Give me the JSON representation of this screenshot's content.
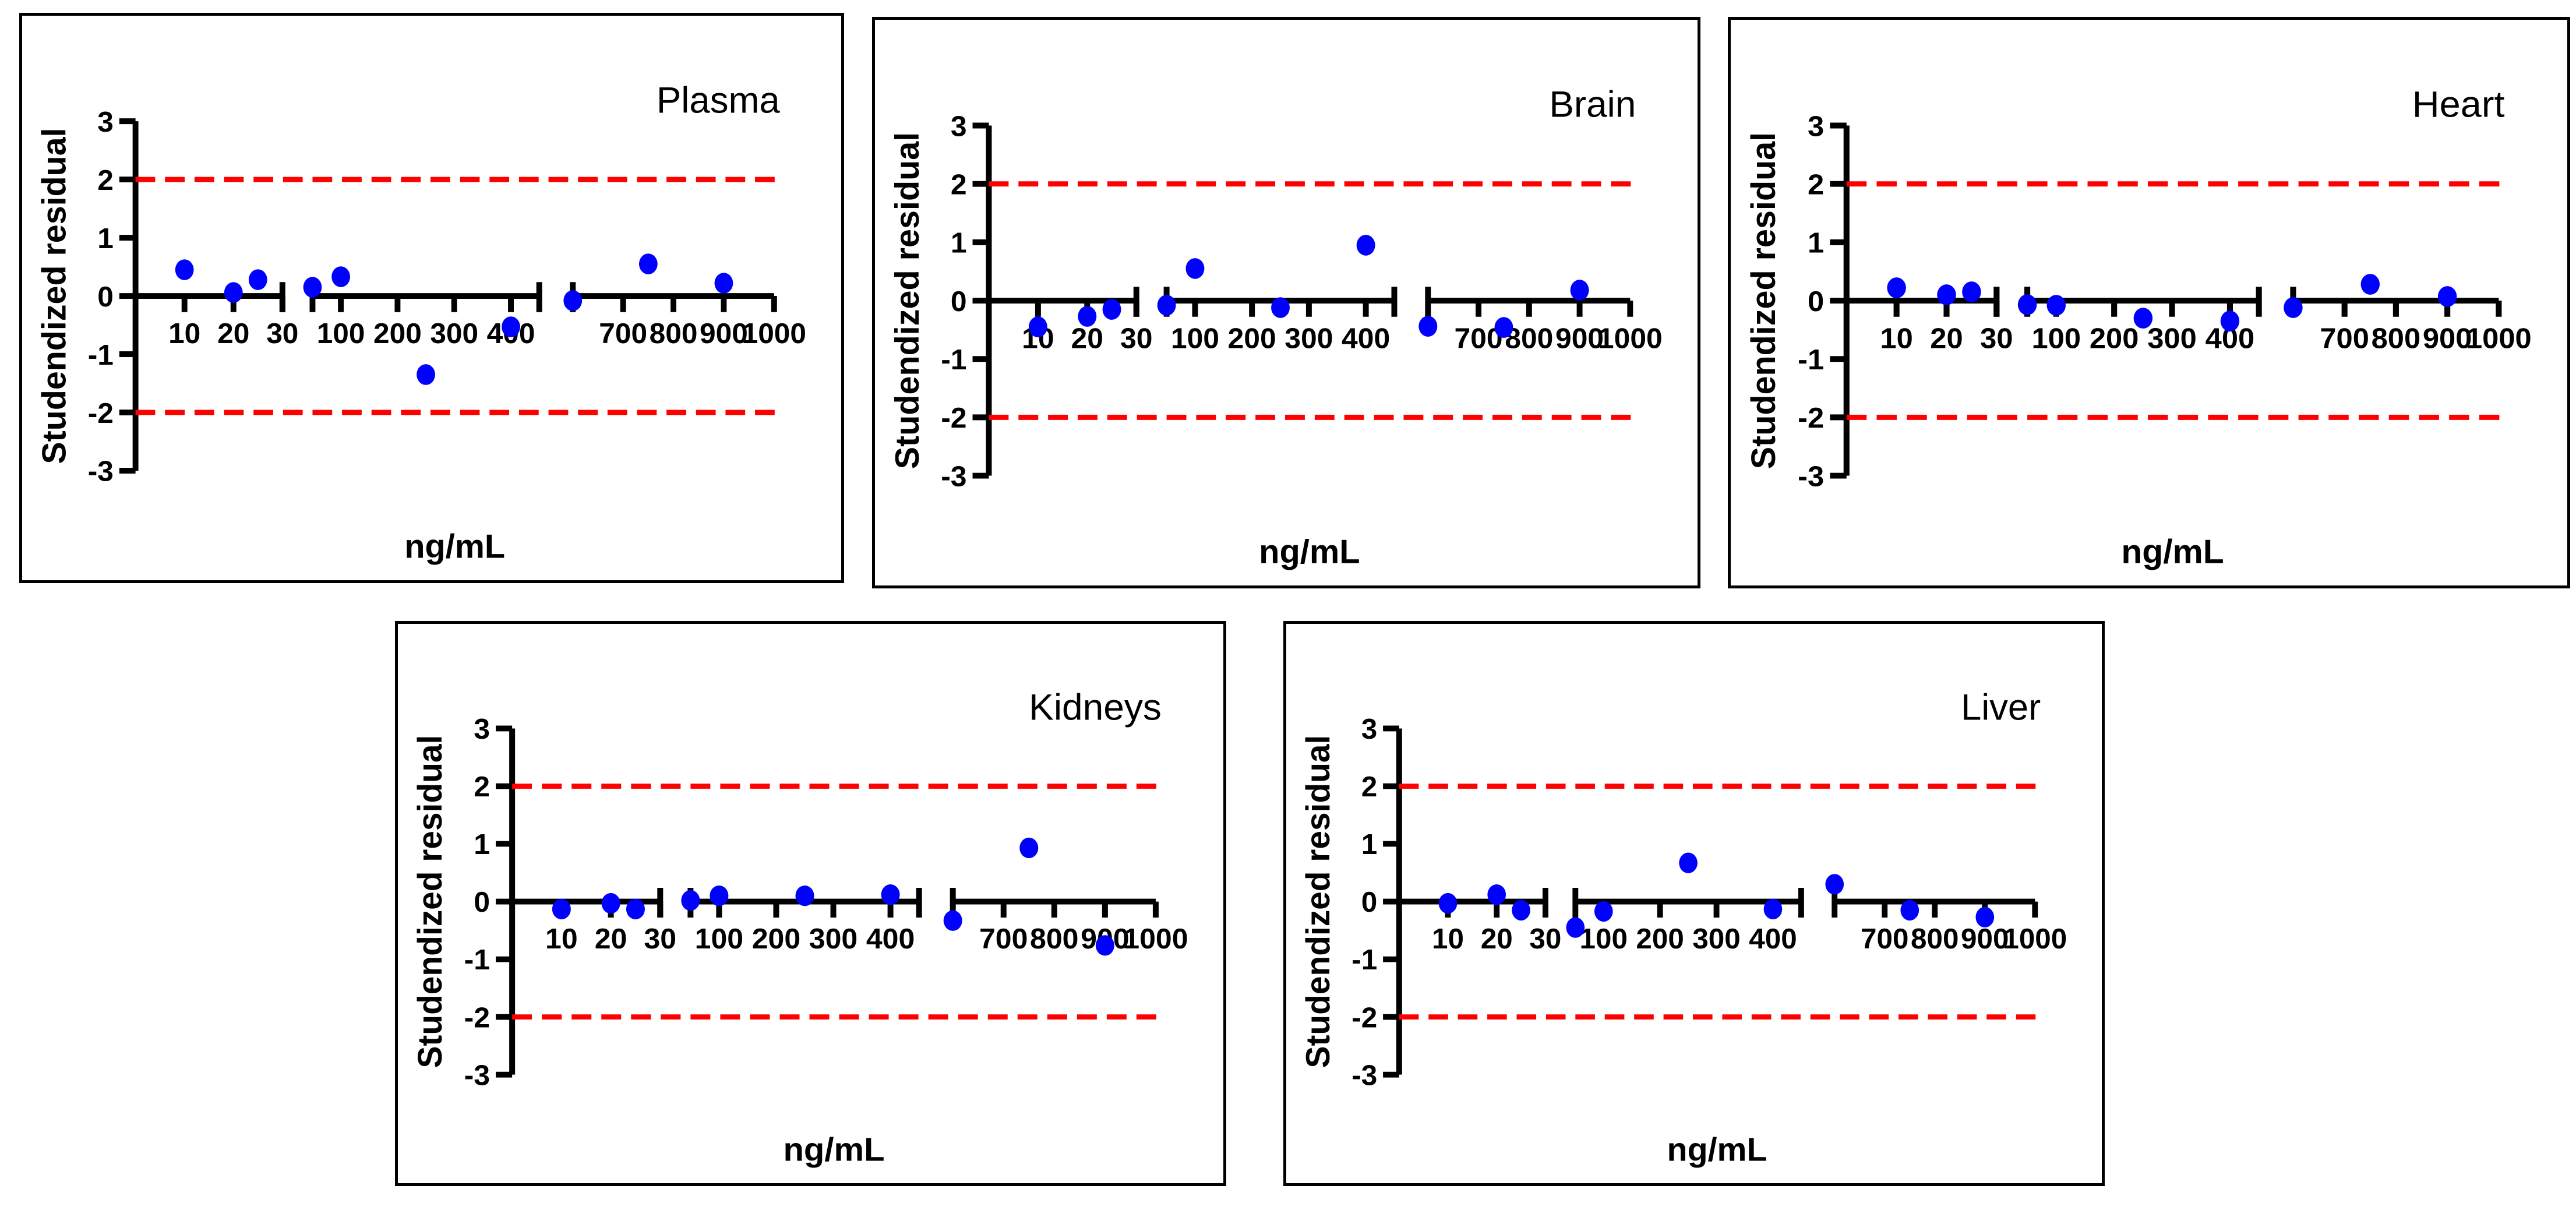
{
  "figure": {
    "background": "#ffffff",
    "point_color": "#0000ff",
    "threshold_color": "#ff0000",
    "axis_color": "#000000"
  },
  "chart_data": [
    {
      "type": "scatter",
      "title": "Plasma",
      "xlabel": "ng/mL",
      "ylabel": "Studendized residual",
      "ylim": [
        -3,
        3
      ],
      "yticks": [
        3,
        2,
        1,
        0,
        -1,
        -2,
        -3
      ],
      "threshold_lines": [
        2,
        -2
      ],
      "x_segments": [
        {
          "range": [
            0,
            30
          ],
          "ticks": [
            10,
            20,
            30
          ]
        },
        {
          "range": [
            50,
            450
          ],
          "ticks": [
            100,
            200,
            300,
            400
          ]
        },
        {
          "range": [
            600,
            1000
          ],
          "ticks": [
            700,
            800,
            900,
            1000
          ]
        }
      ],
      "points": [
        {
          "x": 10,
          "y": 0.45
        },
        {
          "x": 20,
          "y": 0.06
        },
        {
          "x": 25,
          "y": 0.28
        },
        {
          "x": 50,
          "y": 0.15
        },
        {
          "x": 100,
          "y": 0.33
        },
        {
          "x": 250,
          "y": -1.35
        },
        {
          "x": 400,
          "y": -0.53
        },
        {
          "x": 600,
          "y": -0.08
        },
        {
          "x": 750,
          "y": 0.55
        },
        {
          "x": 900,
          "y": 0.22
        }
      ]
    },
    {
      "type": "scatter",
      "title": "Brain",
      "xlabel": "ng/mL",
      "ylabel": "Studendized residual",
      "ylim": [
        -3,
        3
      ],
      "yticks": [
        3,
        2,
        1,
        0,
        -1,
        -2,
        -3
      ],
      "threshold_lines": [
        2,
        -2
      ],
      "x_segments": [
        {
          "range": [
            0,
            30
          ],
          "ticks": [
            10,
            20,
            30
          ]
        },
        {
          "range": [
            50,
            450
          ],
          "ticks": [
            100,
            200,
            300,
            400
          ]
        },
        {
          "range": [
            600,
            1000
          ],
          "ticks": [
            700,
            800,
            900,
            1000
          ]
        }
      ],
      "points": [
        {
          "x": 10,
          "y": -0.45
        },
        {
          "x": 20,
          "y": -0.27
        },
        {
          "x": 25,
          "y": -0.15
        },
        {
          "x": 50,
          "y": -0.08
        },
        {
          "x": 100,
          "y": 0.55
        },
        {
          "x": 250,
          "y": -0.12
        },
        {
          "x": 400,
          "y": 0.95
        },
        {
          "x": 600,
          "y": -0.44
        },
        {
          "x": 750,
          "y": -0.46
        },
        {
          "x": 900,
          "y": 0.18
        }
      ]
    },
    {
      "type": "scatter",
      "title": "Heart",
      "xlabel": "ng/mL",
      "ylabel": "Studendized residual",
      "ylim": [
        -3,
        3
      ],
      "yticks": [
        3,
        2,
        1,
        0,
        -1,
        -2,
        -3
      ],
      "threshold_lines": [
        2,
        -2
      ],
      "x_segments": [
        {
          "range": [
            0,
            30
          ],
          "ticks": [
            10,
            20,
            30
          ]
        },
        {
          "range": [
            50,
            450
          ],
          "ticks": [
            100,
            200,
            300,
            400
          ]
        },
        {
          "range": [
            600,
            1000
          ],
          "ticks": [
            700,
            800,
            900,
            1000
          ]
        }
      ],
      "points": [
        {
          "x": 10,
          "y": 0.22
        },
        {
          "x": 20,
          "y": 0.1
        },
        {
          "x": 25,
          "y": 0.15
        },
        {
          "x": 50,
          "y": -0.07
        },
        {
          "x": 100,
          "y": -0.08
        },
        {
          "x": 250,
          "y": -0.3
        },
        {
          "x": 400,
          "y": -0.35
        },
        {
          "x": 600,
          "y": -0.12
        },
        {
          "x": 750,
          "y": 0.28
        },
        {
          "x": 900,
          "y": 0.07
        }
      ]
    },
    {
      "type": "scatter",
      "title": "Kidneys",
      "xlabel": "ng/mL",
      "ylabel": "Studendized residual",
      "ylim": [
        -3,
        3
      ],
      "yticks": [
        3,
        2,
        1,
        0,
        -1,
        -2,
        -3
      ],
      "threshold_lines": [
        2,
        -2
      ],
      "x_segments": [
        {
          "range": [
            0,
            30
          ],
          "ticks": [
            10,
            20,
            30
          ]
        },
        {
          "range": [
            50,
            450
          ],
          "ticks": [
            100,
            200,
            300,
            400
          ]
        },
        {
          "range": [
            600,
            1000
          ],
          "ticks": [
            700,
            800,
            900,
            1000
          ]
        }
      ],
      "points": [
        {
          "x": 10,
          "y": -0.13
        },
        {
          "x": 20,
          "y": -0.03
        },
        {
          "x": 25,
          "y": -0.13
        },
        {
          "x": 50,
          "y": 0.02
        },
        {
          "x": 100,
          "y": 0.1
        },
        {
          "x": 250,
          "y": 0.1
        },
        {
          "x": 400,
          "y": 0.12
        },
        {
          "x": 600,
          "y": -0.33
        },
        {
          "x": 750,
          "y": 0.93
        },
        {
          "x": 900,
          "y": -0.76
        }
      ]
    },
    {
      "type": "scatter",
      "title": "Liver",
      "xlabel": "ng/mL",
      "ylabel": "Studendized residual",
      "ylim": [
        -3,
        3
      ],
      "yticks": [
        3,
        2,
        1,
        0,
        -1,
        -2,
        -3
      ],
      "threshold_lines": [
        2,
        -2
      ],
      "x_segments": [
        {
          "range": [
            0,
            30
          ],
          "ticks": [
            10,
            20,
            30
          ]
        },
        {
          "range": [
            50,
            450
          ],
          "ticks": [
            100,
            200,
            300,
            400
          ]
        },
        {
          "range": [
            600,
            1000
          ],
          "ticks": [
            700,
            800,
            900,
            1000
          ]
        }
      ],
      "points": [
        {
          "x": 10,
          "y": -0.03
        },
        {
          "x": 20,
          "y": 0.12
        },
        {
          "x": 25,
          "y": -0.15
        },
        {
          "x": 50,
          "y": -0.45
        },
        {
          "x": 100,
          "y": -0.17
        },
        {
          "x": 250,
          "y": 0.67
        },
        {
          "x": 400,
          "y": -0.13
        },
        {
          "x": 600,
          "y": 0.3
        },
        {
          "x": 750,
          "y": -0.15
        },
        {
          "x": 900,
          "y": -0.27
        }
      ]
    }
  ]
}
